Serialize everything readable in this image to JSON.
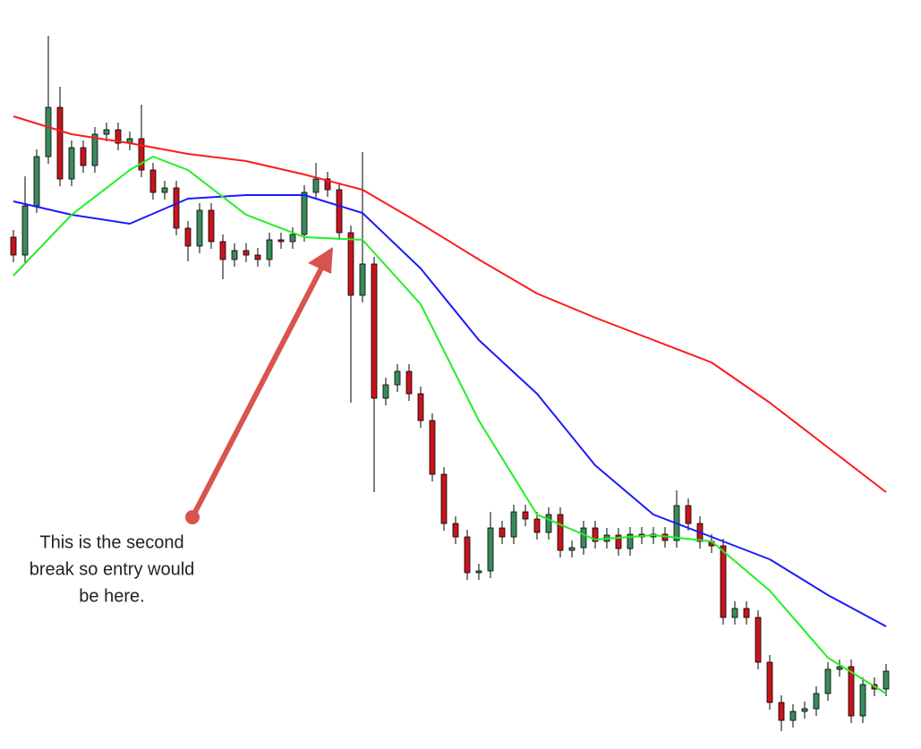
{
  "chart_data": {
    "type": "candlestick",
    "annotation": [
      "This is the second",
      "break so entry would",
      "be here."
    ],
    "xlim": [
      -1,
      76
    ],
    "ylim": [
      0,
      837
    ],
    "up_color": "#3a8a5c",
    "down_color": "#c8141c",
    "x": [
      0,
      1,
      2,
      3,
      4,
      5,
      6,
      7,
      8,
      9,
      10,
      11,
      12,
      13,
      14,
      15,
      16,
      17,
      18,
      19,
      20,
      21,
      22,
      23,
      24,
      25,
      26,
      27,
      28,
      29,
      30,
      31,
      32,
      33,
      34,
      35,
      36,
      37,
      38,
      39,
      40,
      41,
      42,
      43,
      44,
      45,
      46,
      47,
      48,
      49,
      50,
      51,
      52,
      53,
      54,
      55,
      56,
      57,
      58,
      59,
      60,
      61,
      62,
      63,
      64,
      65,
      66,
      67,
      68,
      69,
      70,
      71,
      72,
      73,
      74,
      75
    ],
    "open": [
      572,
      552,
      607,
      662,
      717,
      637,
      672,
      652,
      687,
      692,
      677,
      682,
      647,
      622,
      627,
      582,
      562,
      602,
      567,
      547,
      557,
      552,
      547,
      569,
      567,
      575,
      622,
      637,
      625,
      577,
      507,
      542,
      392,
      407,
      422,
      397,
      367,
      307,
      252,
      237,
      197,
      199,
      247,
      237,
      265,
      257,
      242,
      262,
      222,
      225,
      247,
      232,
      239,
      224,
      240,
      237,
      240,
      233,
      272,
      252,
      232,
      227,
      147,
      157,
      147,
      97,
      52,
      32,
      42,
      45,
      62,
      89,
      92,
      37,
      72,
      67
    ],
    "high": [
      580,
      640,
      670,
      797,
      740,
      680,
      680,
      695,
      700,
      700,
      690,
      720,
      655,
      635,
      635,
      590,
      610,
      610,
      575,
      565,
      565,
      560,
      577,
      577,
      583,
      630,
      655,
      645,
      633,
      585,
      667,
      550,
      415,
      430,
      430,
      405,
      375,
      315,
      260,
      245,
      207,
      265,
      255,
      273,
      273,
      265,
      270,
      270,
      233,
      255,
      255,
      247,
      247,
      248,
      248,
      248,
      248,
      289,
      280,
      260,
      240,
      235,
      165,
      165,
      155,
      105,
      60,
      50,
      53,
      70,
      97,
      100,
      100,
      80,
      80,
      95
    ],
    "low": [
      544,
      544,
      599,
      654,
      629,
      629,
      644,
      644,
      679,
      669,
      669,
      639,
      614,
      614,
      574,
      545,
      554,
      559,
      525,
      539,
      544,
      539,
      539,
      559,
      559,
      567,
      614,
      617,
      569,
      387,
      499,
      287,
      384,
      399,
      389,
      359,
      299,
      244,
      229,
      189,
      189,
      191,
      229,
      229,
      249,
      234,
      234,
      214,
      214,
      217,
      224,
      224,
      216,
      216,
      229,
      229,
      225,
      225,
      244,
      224,
      219,
      139,
      139,
      139,
      89,
      44,
      20,
      24,
      34,
      37,
      54,
      81,
      29,
      29,
      59,
      59
    ],
    "close": [
      552,
      607,
      662,
      717,
      637,
      672,
      652,
      687,
      692,
      677,
      682,
      647,
      622,
      627,
      582,
      562,
      602,
      567,
      547,
      557,
      552,
      547,
      569,
      567,
      575,
      622,
      637,
      625,
      577,
      507,
      542,
      392,
      407,
      422,
      397,
      367,
      307,
      252,
      237,
      197,
      199,
      247,
      237,
      265,
      257,
      242,
      262,
      222,
      225,
      247,
      232,
      239,
      224,
      240,
      237,
      240,
      233,
      272,
      252,
      232,
      227,
      147,
      157,
      147,
      97,
      52,
      32,
      42,
      45,
      62,
      89,
      92,
      37,
      72,
      67,
      87
    ],
    "lines": [
      {
        "color": "#ff1a1a",
        "x": [
          0,
          5,
          10,
          15,
          20,
          25,
          30,
          35,
          40,
          45,
          50,
          55,
          60,
          65,
          70,
          75
        ],
        "values": [
          707,
          687,
          677,
          665,
          657,
          642,
          625,
          587,
          547,
          509,
          482,
          457,
          432,
          387,
          337,
          287
        ]
      },
      {
        "color": "#1a1aff",
        "x": [
          0,
          5,
          10,
          15,
          20,
          25,
          30,
          35,
          40,
          45,
          50,
          55,
          60,
          65,
          70,
          75
        ],
        "values": [
          612,
          597,
          587,
          615,
          619,
          619,
          599,
          537,
          457,
          397,
          317,
          262,
          237,
          212,
          172,
          137
        ]
      },
      {
        "color": "#22ee22",
        "x": [
          0,
          5,
          10,
          12,
          15,
          20,
          25,
          30,
          35,
          40,
          45,
          50,
          55,
          60,
          65,
          70,
          75
        ],
        "values": [
          529,
          597,
          647,
          662,
          647,
          597,
          572,
          569,
          497,
          367,
          262,
          234,
          239,
          232,
          177,
          102,
          62
        ]
      }
    ]
  }
}
